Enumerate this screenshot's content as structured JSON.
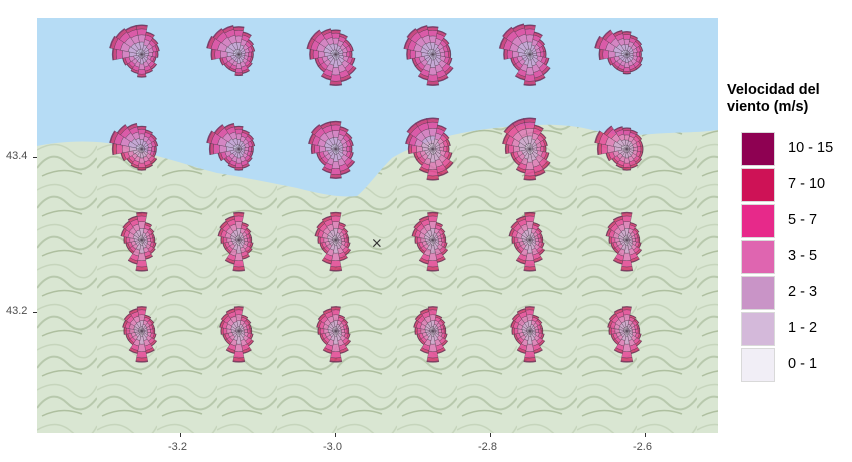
{
  "map": {
    "sea_color": "#b6dcf5",
    "land_color": "#d9e6d2",
    "marker_symbol": "×",
    "x_axis": {
      "ticks": [
        "-3.2",
        "-3.0",
        "-2.8",
        "-2.6"
      ]
    },
    "y_axis": {
      "ticks": [
        "43.4",
        "43.2"
      ]
    },
    "legend": {
      "title": "Velocidad del\nviento (m/s)",
      "items": [
        {
          "label": "10 - 15",
          "color": "#8e0152"
        },
        {
          "label": "7 - 10",
          "color": "#ce1256"
        },
        {
          "label": "5 - 7",
          "color": "#e7298a"
        },
        {
          "label": "3 - 5",
          "color": "#df65b0"
        },
        {
          "label": "2 - 3",
          "color": "#c994c7"
        },
        {
          "label": "1 - 2",
          "color": "#d4b9da"
        },
        {
          "label": "0 - 1",
          "color": "#f1eef6"
        }
      ]
    },
    "wind_roses": [
      {
        "lon": -3.25,
        "lat": 43.52,
        "direction_profile": [
          0.9,
          0.7,
          0.6,
          0.55,
          0.5,
          0.45,
          0.55,
          0.6,
          0.7,
          0.6,
          0.55,
          0.6,
          0.9,
          1.0,
          0.95,
          0.9
        ]
      },
      {
        "lon": -3.125,
        "lat": 43.52,
        "direction_profile": [
          0.85,
          0.7,
          0.55,
          0.5,
          0.45,
          0.45,
          0.5,
          0.6,
          0.65,
          0.55,
          0.55,
          0.6,
          0.85,
          1.0,
          0.95,
          0.9
        ]
      },
      {
        "lon": -3.0,
        "lat": 43.52,
        "direction_profile": [
          0.75,
          0.65,
          0.55,
          0.55,
          0.5,
          0.6,
          0.75,
          0.85,
          0.95,
          0.8,
          0.65,
          0.65,
          0.8,
          0.9,
          0.9,
          0.8
        ]
      },
      {
        "lon": -2.875,
        "lat": 43.52,
        "direction_profile": [
          0.85,
          0.75,
          0.6,
          0.55,
          0.55,
          0.6,
          0.75,
          0.85,
          0.95,
          0.8,
          0.65,
          0.65,
          0.8,
          0.9,
          0.95,
          0.9
        ]
      },
      {
        "lon": -2.75,
        "lat": 43.52,
        "direction_profile": [
          0.9,
          0.7,
          0.55,
          0.5,
          0.5,
          0.6,
          0.75,
          0.85,
          0.95,
          0.8,
          0.6,
          0.6,
          0.8,
          0.95,
          1.0,
          0.95
        ]
      },
      {
        "lon": -2.625,
        "lat": 43.52,
        "direction_profile": [
          0.7,
          0.6,
          0.55,
          0.5,
          0.45,
          0.5,
          0.55,
          0.55,
          0.6,
          0.55,
          0.55,
          0.6,
          0.85,
          1.0,
          0.9,
          0.75
        ]
      },
      {
        "lon": -3.25,
        "lat": 43.39,
        "direction_profile": [
          0.7,
          0.6,
          0.55,
          0.5,
          0.45,
          0.45,
          0.55,
          0.6,
          0.65,
          0.6,
          0.55,
          0.65,
          0.9,
          1.0,
          0.9,
          0.8
        ]
      },
      {
        "lon": -3.125,
        "lat": 43.39,
        "direction_profile": [
          0.7,
          0.6,
          0.55,
          0.5,
          0.45,
          0.45,
          0.5,
          0.6,
          0.65,
          0.6,
          0.55,
          0.65,
          0.9,
          1.0,
          0.9,
          0.8
        ]
      },
      {
        "lon": -3.0,
        "lat": 43.39,
        "direction_profile": [
          0.85,
          0.7,
          0.6,
          0.55,
          0.5,
          0.55,
          0.7,
          0.8,
          0.9,
          0.75,
          0.6,
          0.6,
          0.75,
          0.85,
          0.9,
          0.85
        ]
      },
      {
        "lon": -2.875,
        "lat": 43.39,
        "direction_profile": [
          0.95,
          0.75,
          0.6,
          0.55,
          0.5,
          0.6,
          0.75,
          0.85,
          0.95,
          0.75,
          0.6,
          0.6,
          0.75,
          0.85,
          0.95,
          0.95
        ]
      },
      {
        "lon": -2.75,
        "lat": 43.39,
        "direction_profile": [
          0.95,
          0.75,
          0.6,
          0.55,
          0.5,
          0.6,
          0.75,
          0.85,
          0.95,
          0.75,
          0.6,
          0.6,
          0.75,
          0.85,
          0.95,
          0.95
        ]
      },
      {
        "lon": -2.625,
        "lat": 43.39,
        "direction_profile": [
          0.65,
          0.6,
          0.55,
          0.5,
          0.5,
          0.5,
          0.55,
          0.6,
          0.65,
          0.6,
          0.55,
          0.65,
          0.9,
          1.0,
          0.85,
          0.7
        ]
      },
      {
        "lon": -3.25,
        "lat": 43.265,
        "direction_profile": [
          0.85,
          0.55,
          0.45,
          0.4,
          0.4,
          0.45,
          0.5,
          0.6,
          0.95,
          0.75,
          0.5,
          0.5,
          0.55,
          0.65,
          0.7,
          0.75
        ]
      },
      {
        "lon": -3.125,
        "lat": 43.265,
        "direction_profile": [
          0.85,
          0.55,
          0.45,
          0.4,
          0.4,
          0.45,
          0.5,
          0.6,
          0.95,
          0.75,
          0.5,
          0.5,
          0.55,
          0.65,
          0.7,
          0.75
        ]
      },
      {
        "lon": -3.0,
        "lat": 43.265,
        "direction_profile": [
          0.85,
          0.55,
          0.45,
          0.4,
          0.4,
          0.45,
          0.55,
          0.65,
          0.95,
          0.75,
          0.5,
          0.5,
          0.55,
          0.65,
          0.7,
          0.75
        ]
      },
      {
        "lon": -2.875,
        "lat": 43.265,
        "direction_profile": [
          0.85,
          0.55,
          0.45,
          0.4,
          0.4,
          0.45,
          0.55,
          0.7,
          0.95,
          0.75,
          0.5,
          0.5,
          0.55,
          0.65,
          0.7,
          0.75
        ]
      },
      {
        "lon": -2.75,
        "lat": 43.265,
        "direction_profile": [
          0.85,
          0.55,
          0.45,
          0.4,
          0.4,
          0.45,
          0.55,
          0.7,
          0.95,
          0.75,
          0.5,
          0.5,
          0.55,
          0.65,
          0.7,
          0.75
        ]
      },
      {
        "lon": -2.625,
        "lat": 43.265,
        "direction_profile": [
          0.85,
          0.55,
          0.45,
          0.4,
          0.4,
          0.45,
          0.55,
          0.7,
          0.95,
          0.75,
          0.5,
          0.5,
          0.55,
          0.65,
          0.7,
          0.75
        ]
      },
      {
        "lon": -3.25,
        "lat": 43.14,
        "direction_profile": [
          0.75,
          0.5,
          0.45,
          0.4,
          0.4,
          0.45,
          0.55,
          0.7,
          0.95,
          0.7,
          0.5,
          0.5,
          0.55,
          0.6,
          0.65,
          0.7
        ]
      },
      {
        "lon": -3.125,
        "lat": 43.14,
        "direction_profile": [
          0.75,
          0.5,
          0.45,
          0.4,
          0.4,
          0.45,
          0.55,
          0.7,
          0.95,
          0.7,
          0.5,
          0.5,
          0.55,
          0.6,
          0.65,
          0.7
        ]
      },
      {
        "lon": -3.0,
        "lat": 43.14,
        "direction_profile": [
          0.75,
          0.5,
          0.45,
          0.4,
          0.4,
          0.45,
          0.55,
          0.7,
          0.95,
          0.7,
          0.5,
          0.5,
          0.55,
          0.6,
          0.65,
          0.7
        ]
      },
      {
        "lon": -2.875,
        "lat": 43.14,
        "direction_profile": [
          0.75,
          0.5,
          0.45,
          0.4,
          0.4,
          0.45,
          0.55,
          0.7,
          0.95,
          0.7,
          0.5,
          0.5,
          0.55,
          0.6,
          0.65,
          0.7
        ]
      },
      {
        "lon": -2.75,
        "lat": 43.14,
        "direction_profile": [
          0.75,
          0.5,
          0.45,
          0.4,
          0.4,
          0.45,
          0.55,
          0.7,
          0.95,
          0.7,
          0.5,
          0.5,
          0.55,
          0.6,
          0.65,
          0.7
        ]
      },
      {
        "lon": -2.625,
        "lat": 43.14,
        "direction_profile": [
          0.75,
          0.5,
          0.45,
          0.4,
          0.4,
          0.45,
          0.55,
          0.7,
          0.95,
          0.7,
          0.5,
          0.5,
          0.55,
          0.6,
          0.65,
          0.7
        ]
      }
    ],
    "marker": {
      "lon": -2.947,
      "lat": 43.26
    }
  }
}
